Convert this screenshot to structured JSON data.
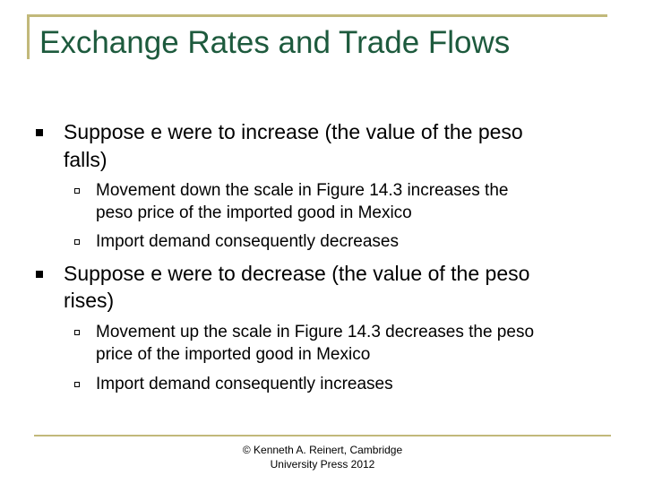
{
  "slide": {
    "title": "Exchange Rates and Trade Flows",
    "accent_color": "#c2b97a",
    "title_color": "#1d5a3d"
  },
  "bullets": [
    {
      "lines": [
        "Suppose e were to increase (the value of the peso",
        "falls)"
      ],
      "sub": [
        {
          "lines": [
            "Movement down the scale in Figure 14.3 increases the",
            "peso price of the imported good in Mexico"
          ]
        },
        {
          "lines": [
            "Import demand consequently decreases"
          ]
        }
      ]
    },
    {
      "lines": [
        "Suppose e were to decrease (the value of the peso",
        "rises)"
      ],
      "sub": [
        {
          "lines": [
            "Movement up the scale in Figure 14.3 decreases the peso",
            "price of the imported good in Mexico"
          ]
        },
        {
          "lines": [
            "Import demand consequently increases"
          ]
        }
      ]
    }
  ],
  "footer": {
    "line1": "© Kenneth A. Reinert, Cambridge",
    "line2": "University Press 2012"
  }
}
